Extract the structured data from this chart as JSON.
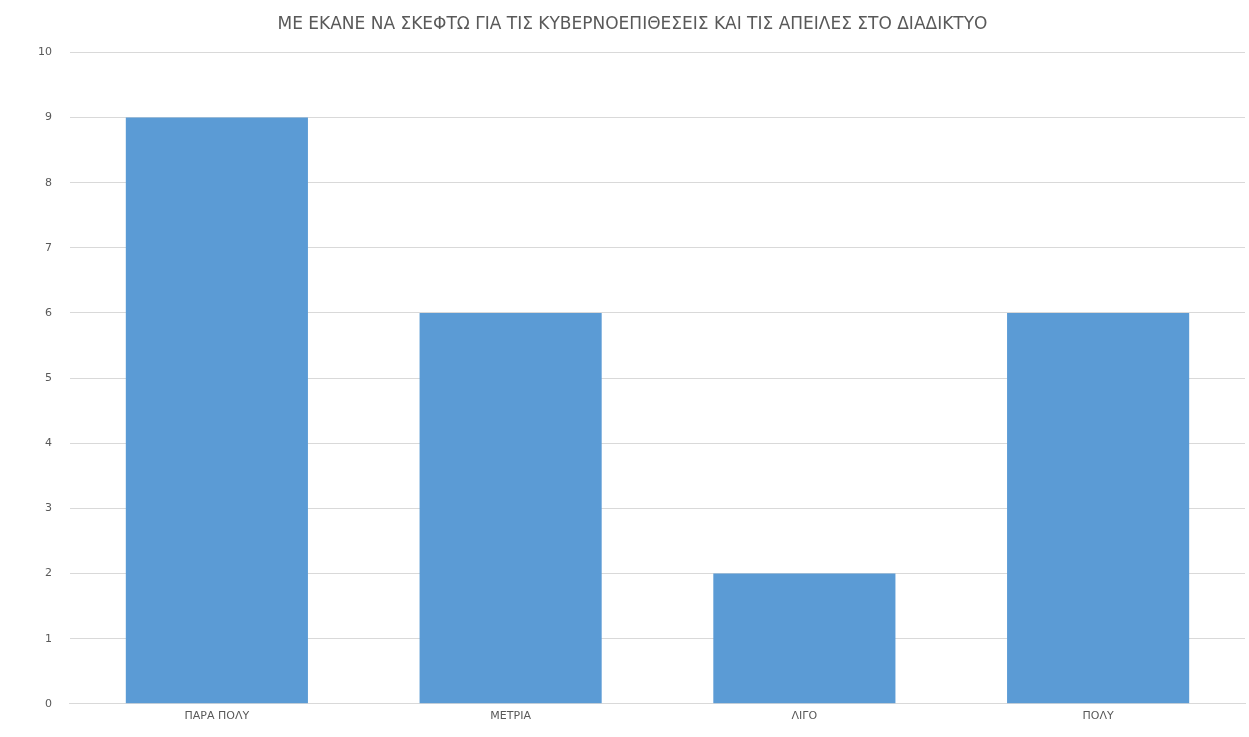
{
  "chart_data": {
    "type": "bar",
    "title": "ΜΕ ΕΚΑΝΕ ΝΑ ΣΚΕΦΤΩ ΓΙΑ ΤΙΣ ΚΥΒΕΡΝΟΕΠΙΘΕΣΕΙΣ ΚΑΙ ΤΙΣ ΑΠΕΙΛΕΣ ΣΤΟ ΔΙΑΔΙΚΤΥΟ",
    "categories": [
      "ΠΑΡΑ ΠΟΛΥ",
      "ΜΕΤΡΙΑ",
      "ΛΙΓΟ",
      "ΠΟΛΥ"
    ],
    "values": [
      9,
      6,
      2,
      6
    ],
    "color": "#5b9bd5",
    "ylim": [
      0,
      10
    ],
    "yticks": [
      0,
      1,
      2,
      3,
      4,
      5,
      6,
      7,
      8,
      9,
      10
    ],
    "grid": "y"
  }
}
